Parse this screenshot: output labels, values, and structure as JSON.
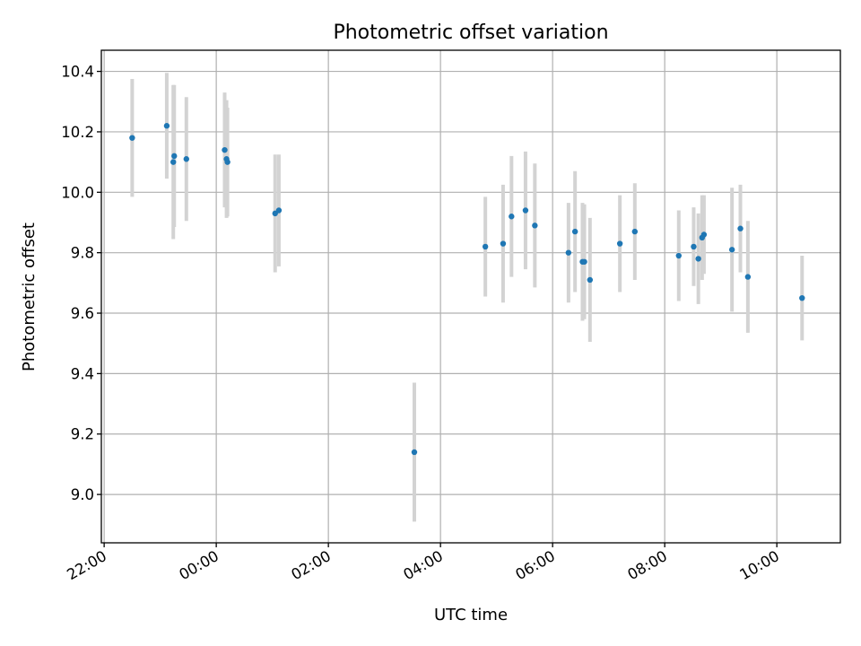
{
  "chart_data": {
    "type": "scatter",
    "title": "Photometric offset variation",
    "xlabel": "UTC time",
    "ylabel": "Photometric offset",
    "xlim": [
      "2023-01-01T21:57",
      "2023-01-02T11:08"
    ],
    "ylim": [
      8.84,
      10.47
    ],
    "x_ticks": [
      {
        "t": "2023-01-01T22:00",
        "label": "22:00"
      },
      {
        "t": "2023-01-02T00:00",
        "label": "00:00"
      },
      {
        "t": "2023-01-02T02:00",
        "label": "02:00"
      },
      {
        "t": "2023-01-02T04:00",
        "label": "04:00"
      },
      {
        "t": "2023-01-02T06:00",
        "label": "06:00"
      },
      {
        "t": "2023-01-02T08:00",
        "label": "08:00"
      },
      {
        "t": "2023-01-02T10:00",
        "label": "10:00"
      }
    ],
    "y_ticks": [
      {
        "v": 9.0,
        "label": "9.0"
      },
      {
        "v": 9.2,
        "label": "9.2"
      },
      {
        "v": 9.4,
        "label": "9.4"
      },
      {
        "v": 9.6,
        "label": "9.6"
      },
      {
        "v": 9.8,
        "label": "9.8"
      },
      {
        "v": 10.0,
        "label": "10.0"
      },
      {
        "v": 10.2,
        "label": "10.2"
      },
      {
        "v": 10.4,
        "label": "10.4"
      }
    ],
    "grid": true,
    "point_color": "#1f77b4",
    "errorbar_color": "#d3d3d3",
    "points": [
      {
        "x": "2023-01-01T22:30",
        "y": 10.18,
        "err": 0.195
      },
      {
        "x": "2023-01-01T23:07",
        "y": 10.22,
        "err": 0.175
      },
      {
        "x": "2023-01-01T23:14",
        "y": 10.1,
        "err": 0.255
      },
      {
        "x": "2023-01-01T23:15",
        "y": 10.12,
        "err": 0.235
      },
      {
        "x": "2023-01-01T23:28",
        "y": 10.11,
        "err": 0.205
      },
      {
        "x": "2023-01-02T00:09",
        "y": 10.14,
        "err": 0.19
      },
      {
        "x": "2023-01-02T00:11",
        "y": 10.11,
        "err": 0.195
      },
      {
        "x": "2023-01-02T00:12",
        "y": 10.1,
        "err": 0.18
      },
      {
        "x": "2023-01-02T01:03",
        "y": 9.93,
        "err": 0.195
      },
      {
        "x": "2023-01-02T01:07",
        "y": 9.94,
        "err": 0.185
      },
      {
        "x": "2023-01-02T03:32",
        "y": 9.14,
        "err": 0.23
      },
      {
        "x": "2023-01-02T04:48",
        "y": 9.82,
        "err": 0.165
      },
      {
        "x": "2023-01-02T05:07",
        "y": 9.83,
        "err": 0.195
      },
      {
        "x": "2023-01-02T05:16",
        "y": 9.92,
        "err": 0.2
      },
      {
        "x": "2023-01-02T05:31",
        "y": 9.94,
        "err": 0.195
      },
      {
        "x": "2023-01-02T05:41",
        "y": 9.89,
        "err": 0.205
      },
      {
        "x": "2023-01-02T06:17",
        "y": 9.8,
        "err": 0.165
      },
      {
        "x": "2023-01-02T06:24",
        "y": 9.87,
        "err": 0.2
      },
      {
        "x": "2023-01-02T06:32",
        "y": 9.77,
        "err": 0.195
      },
      {
        "x": "2023-01-02T06:34",
        "y": 9.77,
        "err": 0.19
      },
      {
        "x": "2023-01-02T06:40",
        "y": 9.71,
        "err": 0.205
      },
      {
        "x": "2023-01-02T07:12",
        "y": 9.83,
        "err": 0.16
      },
      {
        "x": "2023-01-02T07:28",
        "y": 9.87,
        "err": 0.16
      },
      {
        "x": "2023-01-02T08:15",
        "y": 9.79,
        "err": 0.15
      },
      {
        "x": "2023-01-02T08:31",
        "y": 9.82,
        "err": 0.13
      },
      {
        "x": "2023-01-02T08:36",
        "y": 9.78,
        "err": 0.15
      },
      {
        "x": "2023-01-02T08:40",
        "y": 9.85,
        "err": 0.14
      },
      {
        "x": "2023-01-02T08:42",
        "y": 9.86,
        "err": 0.13
      },
      {
        "x": "2023-01-02T09:12",
        "y": 9.81,
        "err": 0.205
      },
      {
        "x": "2023-01-02T09:21",
        "y": 9.88,
        "err": 0.145
      },
      {
        "x": "2023-01-02T09:29",
        "y": 9.72,
        "err": 0.185
      },
      {
        "x": "2023-01-02T10:27",
        "y": 9.65,
        "err": 0.14
      }
    ]
  }
}
